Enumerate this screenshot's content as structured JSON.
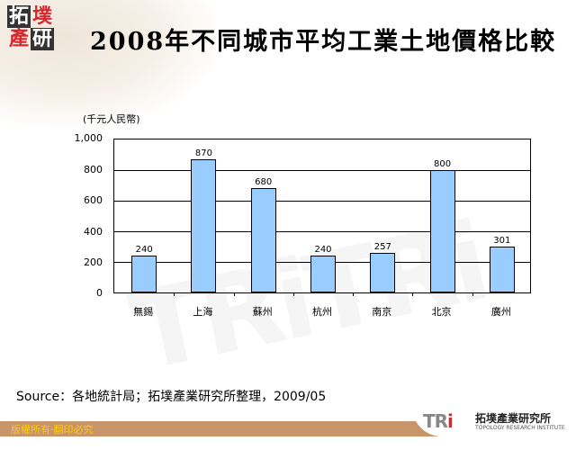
{
  "logo": {
    "chars": [
      "拓",
      "墣",
      "產",
      "研"
    ]
  },
  "title": "2008年不同城市平均工業土地價格比較",
  "chart_data": {
    "type": "bar",
    "title": "2008年不同城市平均工業土地價格比較",
    "ylabel": "(千元人民幣)",
    "xlabel": "",
    "categories": [
      "無錫",
      "上海",
      "蘇州",
      "杭州",
      "南京",
      "北京",
      "廣州"
    ],
    "values": [
      240,
      870,
      680,
      240,
      257,
      800,
      301
    ],
    "value_labels": [
      "240",
      "870",
      "680",
      "240",
      "257",
      "800",
      "301"
    ],
    "ylim": [
      0,
      1000
    ],
    "yticks": [
      "0",
      "200",
      "400",
      "600",
      "800",
      "1,000"
    ],
    "grid": true,
    "legend": null,
    "bar_color": "#99ccff"
  },
  "source": "Source：各地統計局；拓墣產業研究所整理，2009/05",
  "footer": {
    "copyright": "版權所有‧翻印必究",
    "brand_logo": "TRi",
    "brand_zh": "拓墣產業研究所",
    "brand_en": "TOPOLOGY RESEARCH INSTITUTE"
  },
  "watermark": "TRiTRi"
}
